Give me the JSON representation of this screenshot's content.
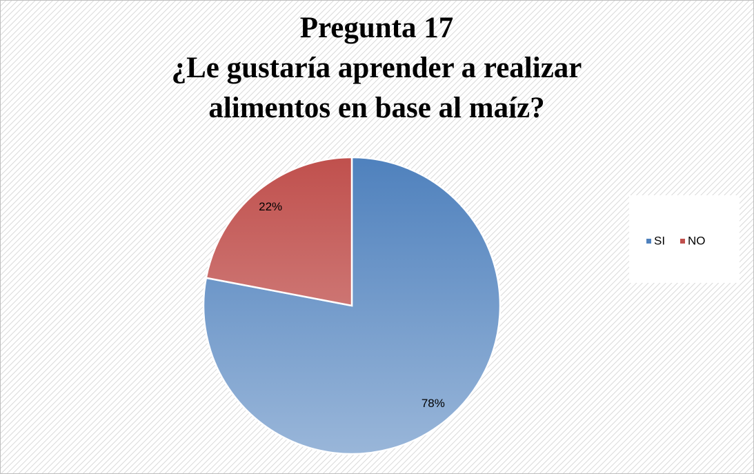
{
  "chart_data": {
    "type": "pie",
    "title": [
      "Pregunta 17",
      "¿Le gustaría aprender a realizar",
      "alimentos en base al maíz?"
    ],
    "categories": [
      "SI",
      "NO"
    ],
    "values": [
      78,
      22
    ],
    "value_labels": [
      "78%",
      "22%"
    ],
    "colors": [
      "#4f81bd",
      "#c0504d"
    ],
    "legend": "right"
  }
}
